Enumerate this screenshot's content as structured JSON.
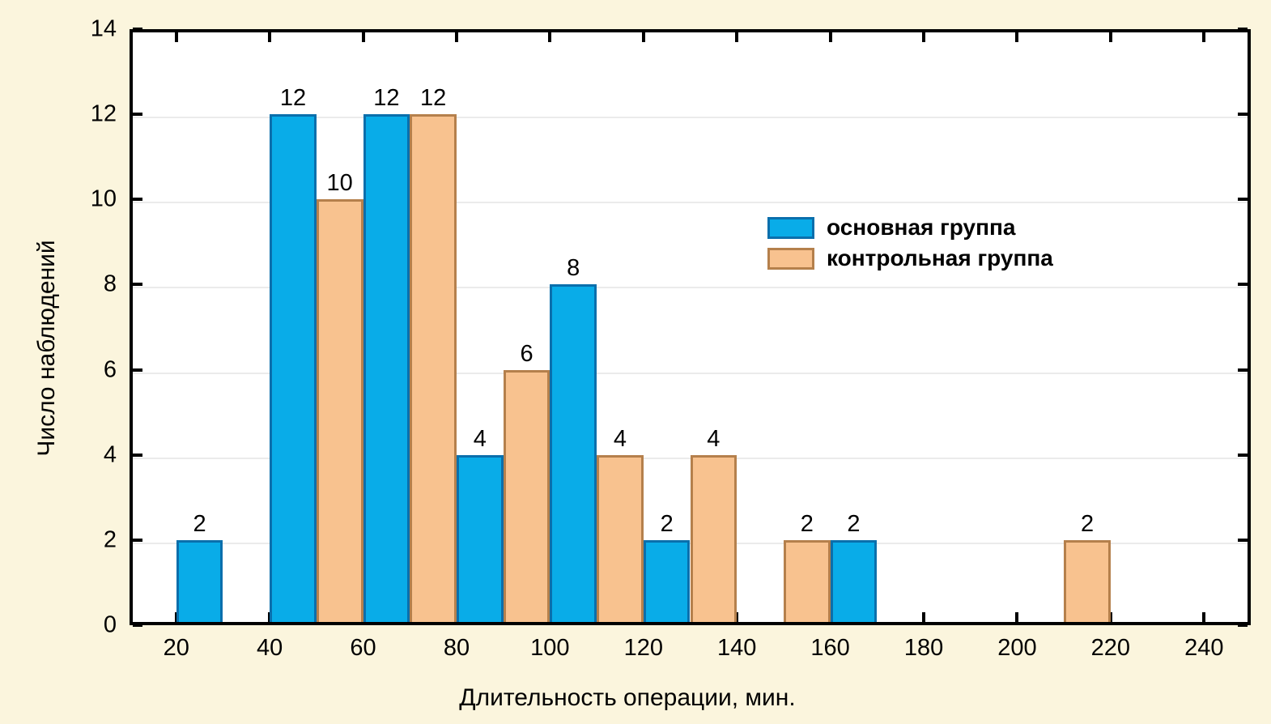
{
  "page": {
    "background": "#FBF5DD"
  },
  "chart_data": {
    "type": "bar",
    "subtype": "histogram-grouped",
    "title": "",
    "xlabel": "Длительность операции, мин.",
    "ylabel": "Число наблюдений",
    "xlim": [
      10,
      250
    ],
    "ylim": [
      0,
      14
    ],
    "x_ticks": [
      20,
      40,
      60,
      80,
      100,
      120,
      140,
      160,
      180,
      200,
      220,
      240
    ],
    "y_ticks": [
      0,
      2,
      4,
      6,
      8,
      10,
      12,
      14
    ],
    "bin_width": 10,
    "grid": "horizontal-light",
    "bar_value_labels": true,
    "legend_position": "inside-upper-right",
    "series": [
      {
        "name": "основная группа",
        "fill": "#09ACE8",
        "border": "#0A6FAC",
        "bars": [
          {
            "range": [
              20,
              30
            ],
            "value": 2
          },
          {
            "range": [
              40,
              50
            ],
            "value": 12
          },
          {
            "range": [
              60,
              70
            ],
            "value": 12
          },
          {
            "range": [
              80,
              90
            ],
            "value": 4
          },
          {
            "range": [
              100,
              110
            ],
            "value": 8
          },
          {
            "range": [
              120,
              130
            ],
            "value": 2
          },
          {
            "range": [
              160,
              170
            ],
            "value": 2
          }
        ]
      },
      {
        "name": "контрольная группа",
        "fill": "#F8C28F",
        "border": "#B5804C",
        "bars": [
          {
            "range": [
              50,
              60
            ],
            "value": 10
          },
          {
            "range": [
              70,
              80
            ],
            "value": 12
          },
          {
            "range": [
              90,
              100
            ],
            "value": 6
          },
          {
            "range": [
              110,
              120
            ],
            "value": 4
          },
          {
            "range": [
              130,
              140
            ],
            "value": 4
          },
          {
            "range": [
              150,
              160
            ],
            "value": 2
          },
          {
            "range": [
              210,
              220
            ],
            "value": 2
          }
        ]
      }
    ],
    "colors": {
      "plot_background": "#FFFFFF",
      "axis": "#000000",
      "grid": "#EBEBEB",
      "text": "#000000"
    }
  }
}
